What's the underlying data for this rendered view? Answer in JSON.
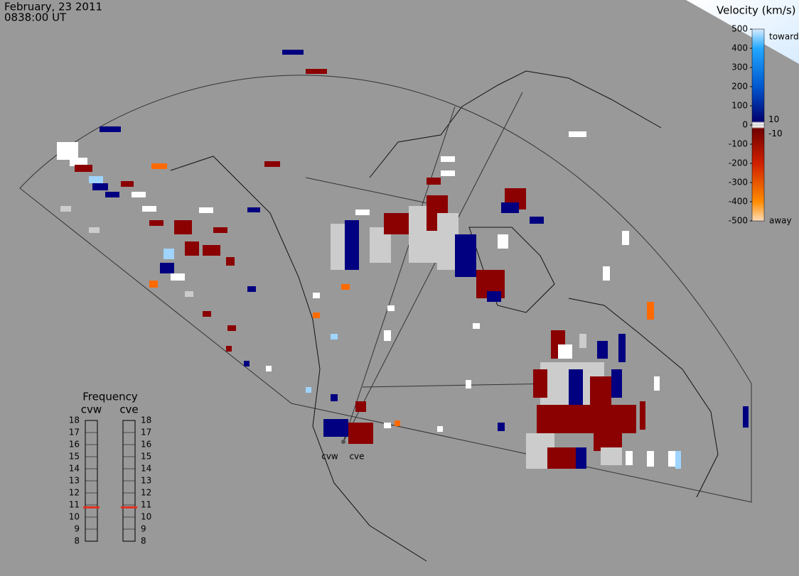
{
  "header": {
    "date": "February, 23 2011",
    "time": "0838:00 UT"
  },
  "colorbar": {
    "title": "Velocity (km/s)",
    "range": [
      -500,
      500
    ],
    "ticks": [
      500,
      400,
      300,
      200,
      100,
      0,
      -100,
      -200,
      -300,
      -400,
      -500
    ],
    "inner_ticks": [
      10,
      -10
    ],
    "toward_label": "toward",
    "away_label": "away"
  },
  "frequency": {
    "title": "Frequency",
    "range": [
      8,
      18
    ],
    "ticks": [
      18,
      17,
      16,
      15,
      14,
      13,
      12,
      11,
      10,
      9,
      8
    ],
    "radars": [
      {
        "name": "cvw",
        "value": 10.8
      },
      {
        "name": "cve",
        "value": 10.8
      }
    ]
  },
  "stations": [
    "cvw",
    "cve"
  ]
}
